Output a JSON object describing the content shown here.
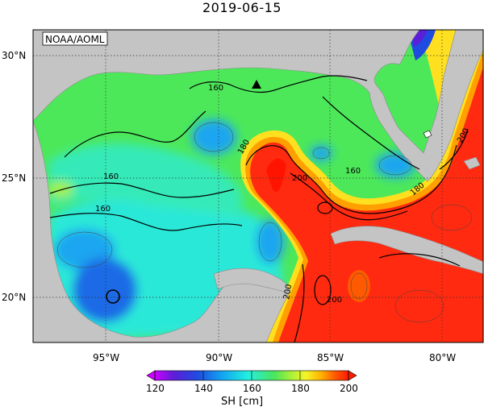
{
  "title": "2019-06-15",
  "source_label": "NOAA/AOML",
  "lat_labels": [
    "30°N",
    "25°N",
    "20°N"
  ],
  "lon_labels": [
    "95°W",
    "90°W",
    "85°W",
    "80°W"
  ],
  "colorbar": {
    "ticks": [
      "120",
      "140",
      "160",
      "180",
      "200"
    ],
    "unit_label": "SH [cm]",
    "range": [
      120,
      200
    ],
    "colors": [
      "#cc00ff",
      "#5a1fd8",
      "#1f4be0",
      "#12a6f0",
      "#22f0e0",
      "#37e8a0",
      "#4ce65a",
      "#a6f03a",
      "#f5f528",
      "#ffb000",
      "#ff5a00",
      "#ff1a00"
    ]
  },
  "contour_labels": [
    "160",
    "160",
    "160",
    "180",
    "160",
    "180",
    "200",
    "200",
    "200",
    "200"
  ],
  "station_marker": "triangle-marker",
  "colors": {
    "land": "#c4c4c4",
    "background": "#ffffff",
    "eddy_red": "#ff2a10",
    "shelf_green": "#4de85a",
    "gulf_cyan": "#2ce8d8"
  }
}
